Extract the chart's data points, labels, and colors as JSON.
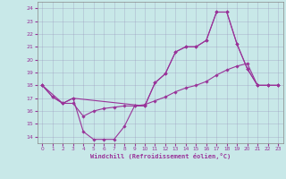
{
  "xlabel": "Windchill (Refroidissement éolien,°C)",
  "bg_color": "#c8e8e8",
  "line_color": "#993399",
  "xlim": [
    -0.5,
    23.5
  ],
  "ylim": [
    13.5,
    24.5
  ],
  "yticks": [
    14,
    15,
    16,
    17,
    18,
    19,
    20,
    21,
    22,
    23,
    24
  ],
  "xticks": [
    0,
    1,
    2,
    3,
    4,
    5,
    6,
    7,
    8,
    9,
    10,
    11,
    12,
    13,
    14,
    15,
    16,
    17,
    18,
    19,
    20,
    21,
    22,
    23
  ],
  "line1_x": [
    0,
    1,
    2,
    3,
    4,
    5,
    6,
    7,
    8,
    9,
    10,
    11,
    12,
    13,
    14,
    15,
    16,
    17,
    18,
    19,
    20,
    21,
    22,
    23
  ],
  "line1_y": [
    18.0,
    17.1,
    16.6,
    17.0,
    14.4,
    13.8,
    13.8,
    13.8,
    14.8,
    16.4,
    16.4,
    18.2,
    18.9,
    20.6,
    21.0,
    21.0,
    21.5,
    23.7,
    23.7,
    21.2,
    19.3,
    18.0,
    18.0,
    18.0
  ],
  "line2_x": [
    0,
    1,
    2,
    3,
    4,
    5,
    6,
    7,
    8,
    9,
    10,
    11,
    12,
    13,
    14,
    15,
    16,
    17,
    18,
    19,
    20,
    21,
    22,
    23
  ],
  "line2_y": [
    18.0,
    17.1,
    16.6,
    16.6,
    15.6,
    16.0,
    16.2,
    16.3,
    16.4,
    16.4,
    16.5,
    16.8,
    17.1,
    17.5,
    17.8,
    18.0,
    18.3,
    18.8,
    19.2,
    19.5,
    19.7,
    18.0,
    18.0,
    18.0
  ],
  "line3_x": [
    0,
    2,
    3,
    10,
    11,
    12,
    13,
    14,
    15,
    16,
    17,
    18,
    19,
    20,
    21,
    22,
    23
  ],
  "line3_y": [
    18.0,
    16.6,
    17.0,
    16.4,
    18.2,
    18.9,
    20.6,
    21.0,
    21.0,
    21.5,
    23.7,
    23.7,
    21.2,
    19.3,
    18.0,
    18.0,
    18.0
  ]
}
